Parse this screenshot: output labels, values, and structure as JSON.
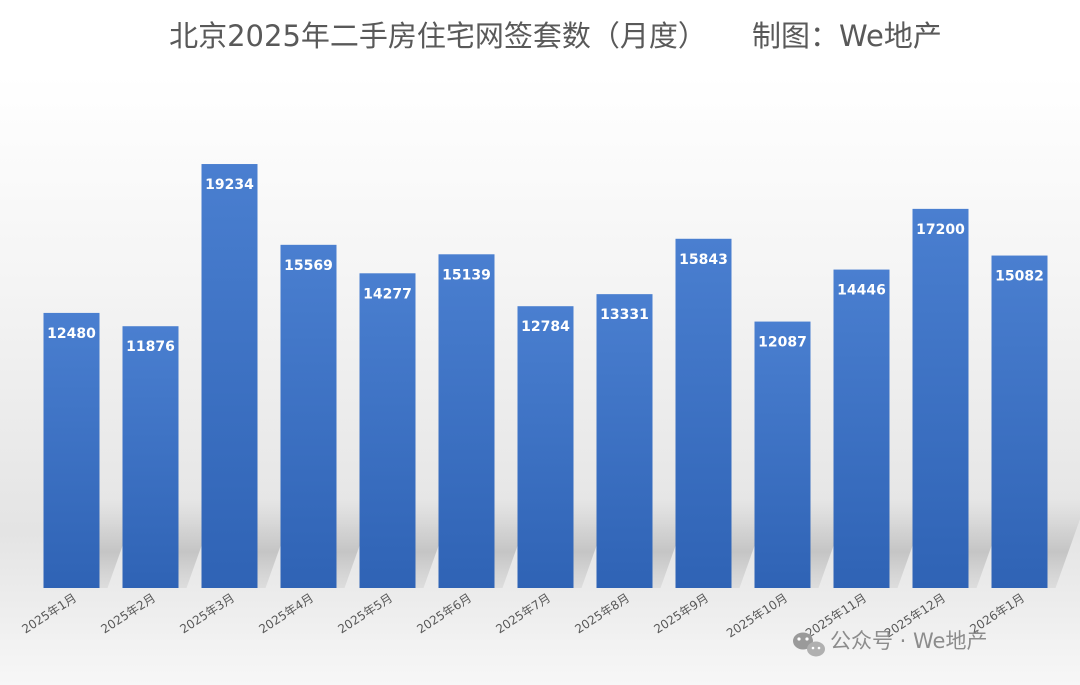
{
  "chart_data": {
    "type": "bar",
    "title": "北京2025年二手房住宅网签套数（月度）",
    "credit": "制图：We地产",
    "categories": [
      "2025年1月",
      "2025年2月",
      "2025年3月",
      "2025年4月",
      "2025年5月",
      "2025年6月",
      "2025年7月",
      "2025年8月",
      "2025年9月",
      "2025年10月",
      "2025年11月",
      "2025年12月",
      "2026年1月"
    ],
    "series": [
      {
        "values": [
          12480,
          11876,
          19234,
          15569,
          14277,
          15139,
          12784,
          13331,
          15843,
          12087,
          14446,
          17200,
          15082
        ]
      }
    ],
    "ylim": [
      0,
      23500
    ],
    "grid": false,
    "legend": "none",
    "colors": {
      "bar_top": "#4a7fd0",
      "bar_bottom": "#2f63b5",
      "label": "#ffffff",
      "text": "#595959"
    }
  },
  "watermark": {
    "text": "公众号 · We地产",
    "icon": "wechat-icon"
  }
}
